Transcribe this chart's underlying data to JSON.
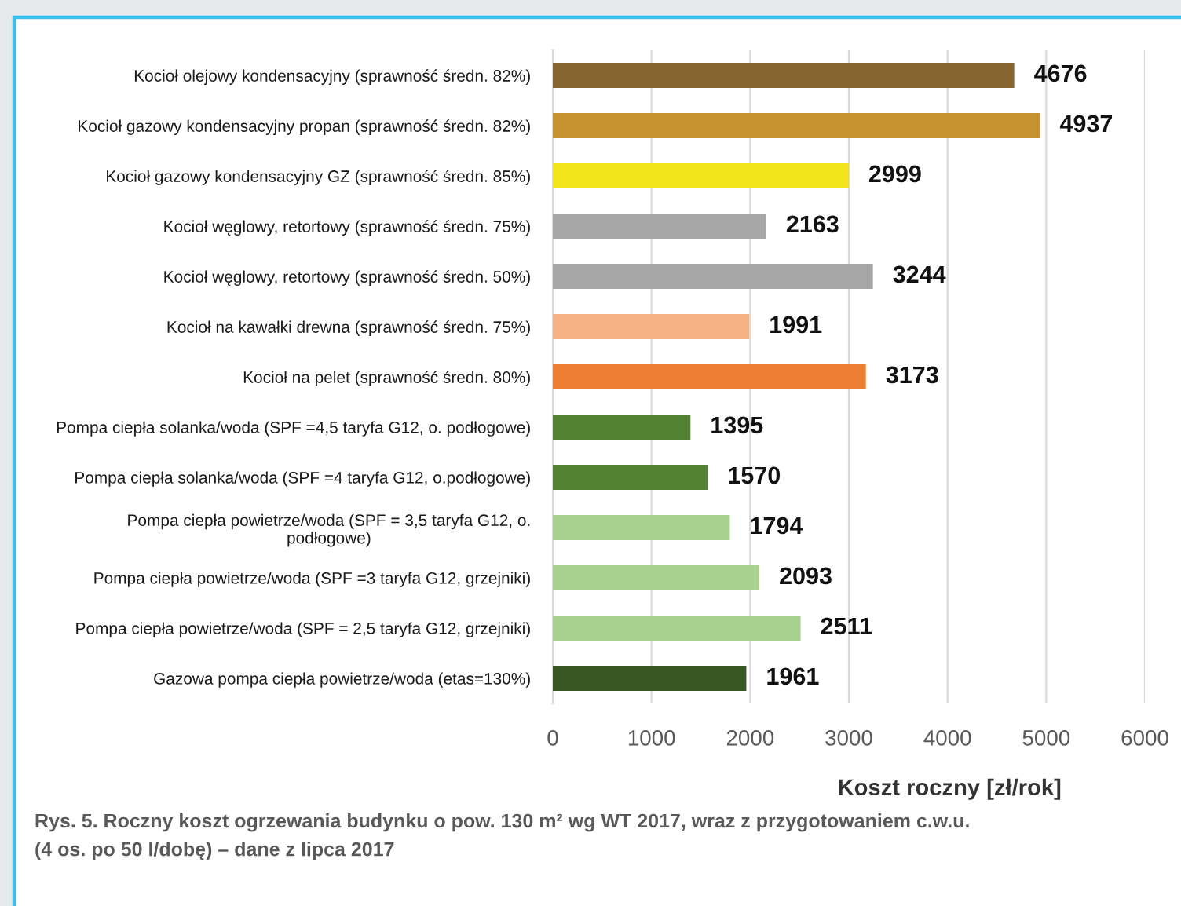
{
  "chart_data": {
    "type": "bar",
    "orientation": "horizontal",
    "categories": [
      "Kocioł olejowy kondensacyjny (sprawność średn. 82%)",
      "Kocioł gazowy kondensacyjny propan (sprawność średn. 82%)",
      "Kocioł gazowy kondensacyjny GZ (sprawność średn. 85%)",
      "Kocioł węglowy, retortowy (sprawność średn. 75%)",
      "Kocioł węglowy, retortowy (sprawność średn. 50%)",
      "Kocioł na kawałki drewna (sprawność średn. 75%)",
      "Kocioł na pelet (sprawność średn. 80%)",
      "Pompa ciepła solanka/woda (SPF =4,5 taryfa G12, o. podłogowe)",
      "Pompa ciepła solanka/woda (SPF =4 taryfa G12, o.podłogowe)",
      "Pompa ciepła powietrze/woda (SPF = 3,5 taryfa G12, o.\npodłogowe)",
      "Pompa ciepła powietrze/woda (SPF =3 taryfa G12, grzejniki)",
      "Pompa ciepła powietrze/woda (SPF = 2,5 taryfa G12, grzejniki)",
      "Gazowa pompa ciepła powietrze/woda (etas=130%)"
    ],
    "values": [
      4676,
      4937,
      2999,
      2163,
      3244,
      1991,
      3173,
      1395,
      1570,
      1794,
      2093,
      2511,
      1961
    ],
    "colors": [
      "#866531",
      "#c4922e",
      "#f2e51a",
      "#a6a6a6",
      "#a6a6a6",
      "#f4b183",
      "#ed7d31",
      "#548235",
      "#548235",
      "#a9d18e",
      "#a9d18e",
      "#a9d18e",
      "#385723"
    ],
    "xlabel": "Koszt roczny [zł/rok]",
    "xlim": [
      0,
      6000
    ],
    "xticks": [
      0,
      1000,
      2000,
      3000,
      4000,
      5000,
      6000
    ],
    "grid": "x",
    "data_labels": true,
    "annotations": [
      "Rys. 5. Roczny koszt ogrzewania budynku o pow. 130 m² wg WT 2017, wraz z przygotowaniem c.w.u.\n(4 os. po 50 l/dobę) – dane z lipca 2017"
    ]
  }
}
